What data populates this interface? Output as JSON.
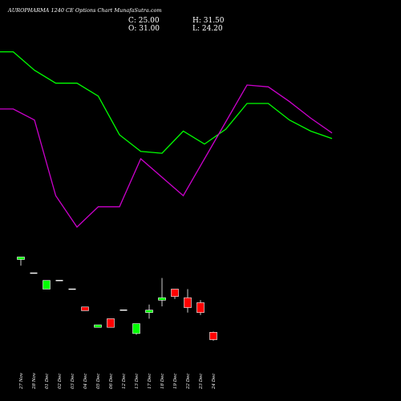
{
  "chart_data": {
    "type": "candlestick",
    "title": "AUROPHARMA 1240  CE Options  Chart MunafaSutra.com",
    "stats": {
      "close": "C: 25.00",
      "high": "H: 31.50",
      "open": "O: 31.00",
      "low": "L: 24.20"
    },
    "price_range": [
      0,
      130
    ],
    "candles": [
      {
        "date": "27 Nov",
        "open": 90.0,
        "high": 92.0,
        "low": 85.0,
        "close": 92.0
      },
      {
        "date": "28 Nov",
        "open": 79.0,
        "high": 79.0,
        "low": 79.0,
        "close": 79.0
      },
      {
        "date": "01 Dec",
        "open": 66.0,
        "high": 73.0,
        "low": 66.0,
        "close": 73.0
      },
      {
        "date": "02 Dec",
        "open": 73.0,
        "high": 73.0,
        "low": 73.0,
        "close": 73.0
      },
      {
        "date": "03 Dec",
        "open": 66.0,
        "high": 66.0,
        "low": 66.0,
        "close": 66.0
      },
      {
        "date": "04 Dec",
        "open": 51.5,
        "high": 51.5,
        "low": 48.5,
        "close": 48.5
      },
      {
        "date": "05 Dec",
        "open": 35.0,
        "high": 37.0,
        "low": 35.0,
        "close": 37.0
      },
      {
        "date": "06 Dec",
        "open": 42.0,
        "high": 42.0,
        "low": 35.0,
        "close": 35.0
      },
      {
        "date": "12 Dec",
        "open": 49.0,
        "high": 49.0,
        "low": 49.0,
        "close": 49.0
      },
      {
        "date": "13 Dec",
        "open": 30.0,
        "high": 38.0,
        "low": 29.0,
        "close": 38.0
      },
      {
        "date": "17 Dec",
        "open": 47.0,
        "high": 53.5,
        "low": 42.0,
        "close": 49.0
      },
      {
        "date": "18 Dec",
        "open": 57.0,
        "high": 75.0,
        "low": 52.0,
        "close": 59.0
      },
      {
        "date": "19 Dec",
        "open": 66.0,
        "high": 66.0,
        "low": 58.0,
        "close": 60.0
      },
      {
        "date": "22 Dec",
        "open": 59.0,
        "high": 66.0,
        "low": 47.0,
        "close": 51.0
      },
      {
        "date": "23 Dec",
        "open": 55.0,
        "high": 57.0,
        "low": 45.0,
        "close": 47.0
      },
      {
        "date": "24 Dec",
        "open": 31.0,
        "high": 31.5,
        "low": 24.2,
        "close": 25.0
      }
    ],
    "bands": [
      {
        "color": "#00ff00",
        "values": [
          198,
          198,
          188,
          181,
          181,
          174,
          153,
          144,
          143,
          155,
          148,
          156,
          170,
          170,
          161,
          155,
          151
        ]
      },
      {
        "color": "#cc00cc",
        "values": [
          167,
          167,
          161,
          120,
          103,
          114,
          114,
          140,
          130,
          120,
          140,
          160,
          180,
          179,
          171,
          162,
          154
        ]
      }
    ],
    "up_color": "#00ff00",
    "down_color": "#ff0000",
    "grid": false
  }
}
